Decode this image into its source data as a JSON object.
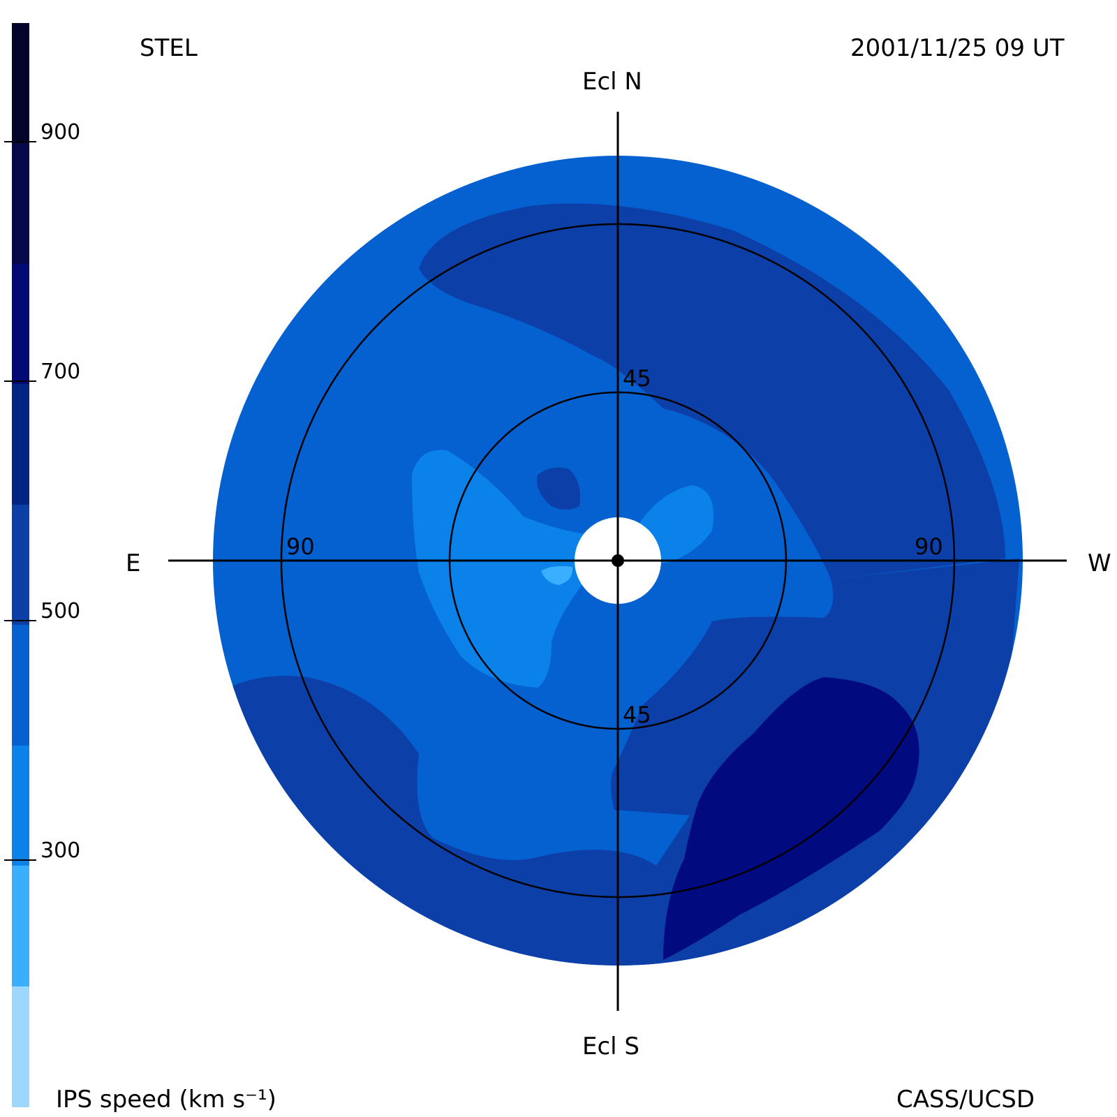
{
  "header": {
    "left": "STEL",
    "right": "2001/11/25 09 UT"
  },
  "directions": {
    "north": "Ecl N",
    "south": "Ecl S",
    "east": "E",
    "west": "W"
  },
  "rings": {
    "inner_north": "45",
    "inner_south": "45",
    "outer_east": "90",
    "outer_west": "90"
  },
  "legend": {
    "title": "IPS speed (km s⁻¹)",
    "ticks": [
      "900",
      "700",
      "500",
      "300"
    ],
    "colors": [
      "#04042a",
      "#06084a",
      "#030a76",
      "#002484",
      "#0d3fa8",
      "#0560d0",
      "#0a82ea",
      "#3aafff",
      "#9dd6ff"
    ]
  },
  "footer": {
    "right": "CASS/UCSD"
  },
  "colors": {
    "lightest": "#3aafff",
    "light": "#0a82ea",
    "medium": "#0560d0",
    "mediumDark": "#0d3fa8",
    "dark": "#002484",
    "darkest": "#020a80",
    "center": "#ffffff",
    "lines": "#000000"
  }
}
